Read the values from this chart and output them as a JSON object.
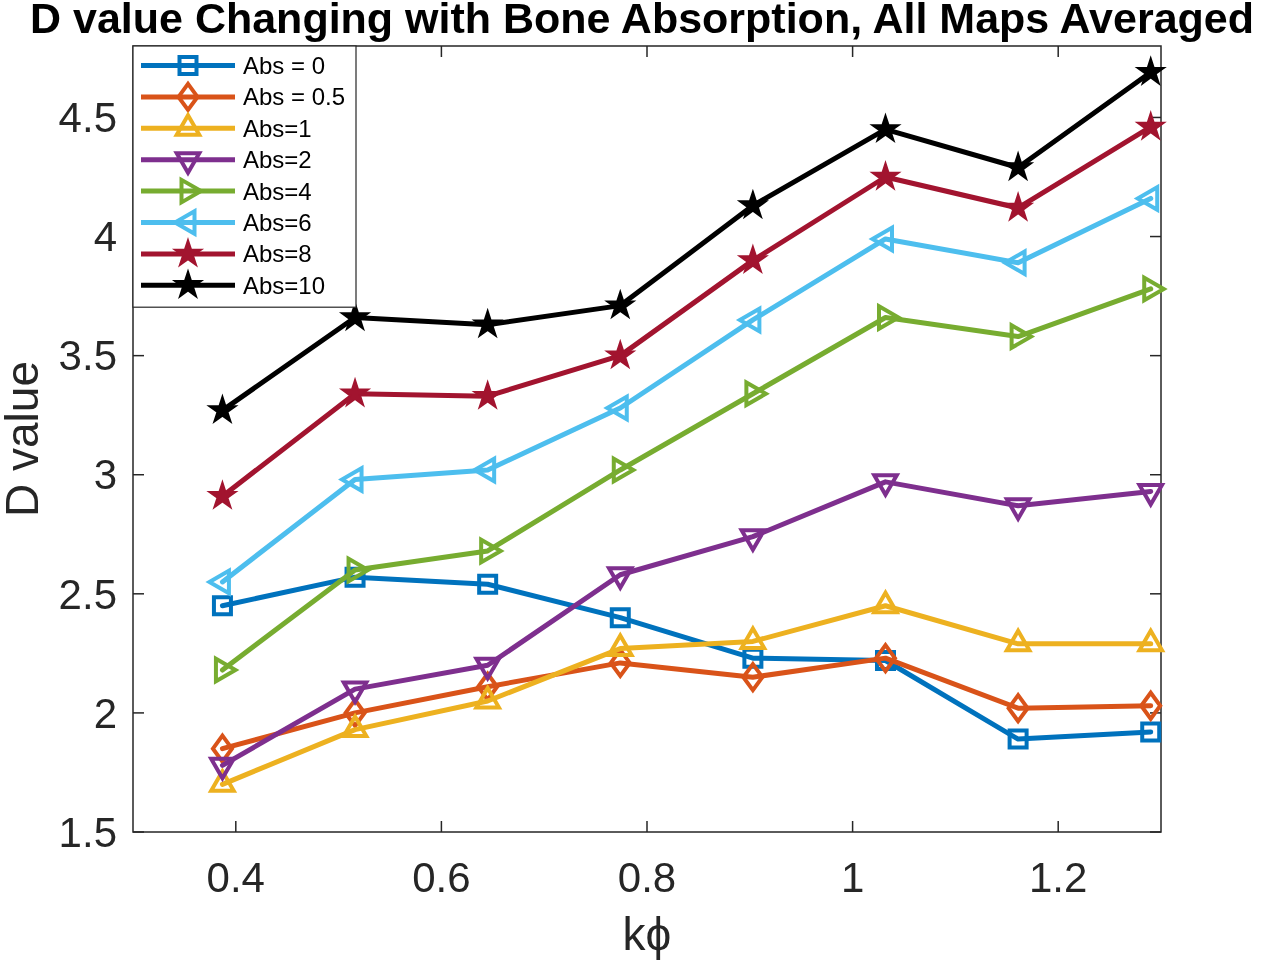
{
  "chart_data": {
    "type": "line",
    "title": "D value Changing with Bone Absorption, All Maps Averaged",
    "xlabel": "kϕ",
    "ylabel": "D value",
    "x": [
      0.387,
      0.516,
      0.645,
      0.774,
      0.903,
      1.032,
      1.161,
      1.29
    ],
    "xlim": [
      0.3,
      1.3
    ],
    "xticks": [
      0.4,
      0.6,
      0.8,
      1,
      1.2
    ],
    "ylim": [
      1.5,
      4.8
    ],
    "yticks": [
      1.5,
      2,
      2.5,
      3,
      3.5,
      4,
      4.5
    ],
    "legend": "top left",
    "series": [
      {
        "name": "Abs = 0",
        "color": "#0072bd",
        "marker": "square",
        "values": [
          2.45,
          2.57,
          2.54,
          2.4,
          2.23,
          2.22,
          1.89,
          1.92
        ]
      },
      {
        "name": "Abs = 0.5",
        "color": "#d95319",
        "marker": "diamond",
        "values": [
          1.85,
          2.0,
          2.11,
          2.21,
          2.15,
          2.23,
          2.02,
          2.03
        ]
      },
      {
        "name": "Abs=1",
        "color": "#edb120",
        "marker": "triangle",
        "values": [
          1.7,
          1.93,
          2.05,
          2.27,
          2.3,
          2.45,
          2.29,
          2.29
        ]
      },
      {
        "name": "Abs=2",
        "color": "#7e2f8e",
        "marker": "triangle-down",
        "values": [
          1.78,
          2.1,
          2.2,
          2.58,
          2.74,
          2.97,
          2.87,
          2.93
        ]
      },
      {
        "name": "Abs=4",
        "color": "#77ac30",
        "marker": "triangle-right",
        "values": [
          2.18,
          2.6,
          2.68,
          3.02,
          3.34,
          3.66,
          3.58,
          3.78
        ]
      },
      {
        "name": "Abs=6",
        "color": "#4dbeee",
        "marker": "triangle-left",
        "values": [
          2.55,
          2.98,
          3.02,
          3.28,
          3.65,
          3.99,
          3.89,
          4.16
        ]
      },
      {
        "name": "Abs=8",
        "color": "#a2142f",
        "marker": "star",
        "values": [
          2.91,
          3.34,
          3.33,
          3.5,
          3.9,
          4.25,
          4.12,
          4.46
        ]
      },
      {
        "name": "Abs=10",
        "color": "#000000",
        "marker": "star",
        "values": [
          3.27,
          3.66,
          3.63,
          3.71,
          4.13,
          4.45,
          4.29,
          4.69
        ]
      }
    ]
  }
}
